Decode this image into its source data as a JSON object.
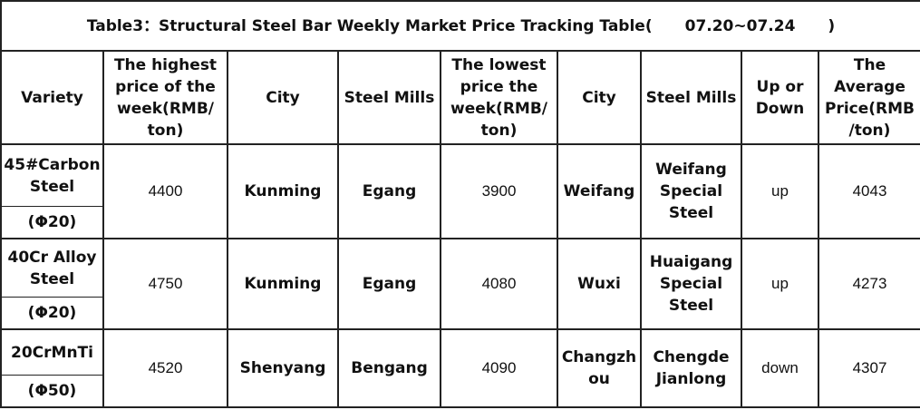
{
  "header": {
    "title": "Table3：Structural Steel Bar Weekly Market Price Tracking Table(",
    "period": "07.20~07.24",
    "title_end": ")"
  },
  "table": {
    "headers": [
      "Variety",
      "The highest price of the week(RMB/ ton)",
      "City",
      "Steel Mills",
      "The lowest price the week(RMB/ ton)",
      "City",
      "Steel Mills",
      "Up or Down",
      "The Average Price(RMB /ton)"
    ],
    "rows": [
      [
        [
          "45#Carbon Steel",
          "(Φ20)"
        ],
        4400,
        "Kunming",
        "Egang",
        3900,
        "Weifang",
        "Weifang Special Steel",
        "up",
        4043
      ],
      [
        [
          "40Cr Alloy Steel",
          "(Φ20)"
        ],
        4750,
        "Kunming",
        "Egang",
        4080,
        "Wuxi",
        "Huaigang Special Steel",
        "up",
        4273
      ],
      [
        [
          "20CrMnTi",
          "(Φ50)"
        ],
        4520,
        "Shenyang",
        "Bengang",
        4090,
        "Changzhou",
        "Chengde Jianlong",
        "down",
        4307
      ]
    ]
  }
}
